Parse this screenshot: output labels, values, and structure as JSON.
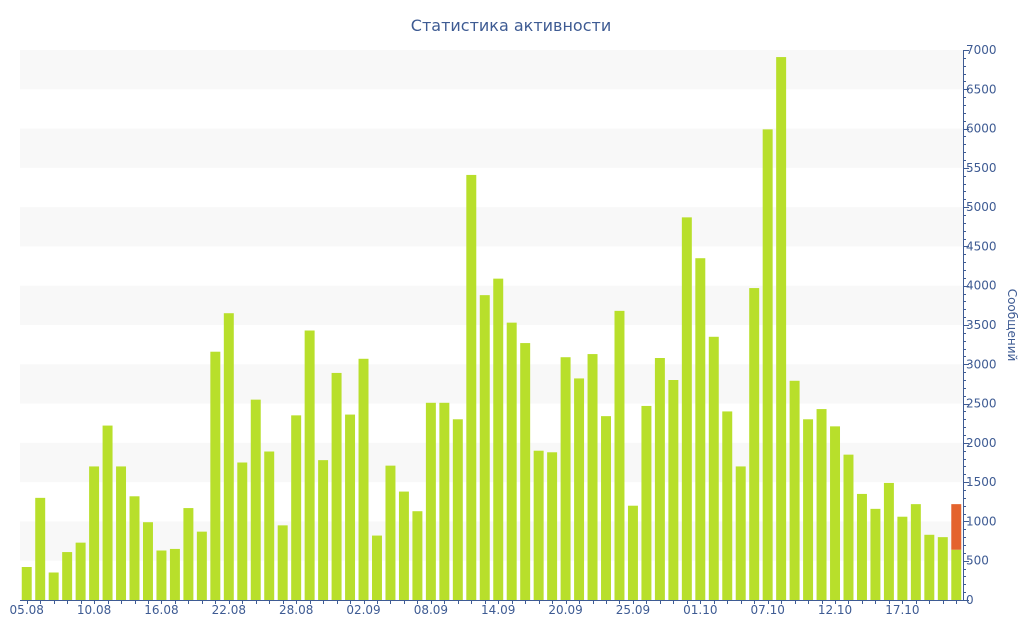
{
  "colors": {
    "bar": "#b8df2b",
    "highlight": "#e4632d",
    "band": "#f8f8f8",
    "axis": "#3e5b93",
    "text": "#3e5b93"
  },
  "chart_data": {
    "type": "bar",
    "title": "Статистика активности",
    "xlabel": "",
    "ylabel": "Сообщений",
    "ylim": [
      0,
      7000
    ],
    "yticks": [
      0,
      500,
      1000,
      1500,
      2000,
      2500,
      3000,
      3500,
      4000,
      4500,
      5000,
      5500,
      6000,
      6500,
      7000
    ],
    "grid": "alternating-bands",
    "y_axis_side": "right",
    "x_tick_labels": [
      {
        "index": 0,
        "label": "05.08"
      },
      {
        "index": 5,
        "label": "10.08"
      },
      {
        "index": 10,
        "label": "16.08"
      },
      {
        "index": 15,
        "label": "22.08"
      },
      {
        "index": 20,
        "label": "28.08"
      },
      {
        "index": 25,
        "label": "02.09"
      },
      {
        "index": 30,
        "label": "08.09"
      },
      {
        "index": 35,
        "label": "14.09"
      },
      {
        "index": 40,
        "label": "20.09"
      },
      {
        "index": 45,
        "label": "25.09"
      },
      {
        "index": 50,
        "label": "01.10"
      },
      {
        "index": 55,
        "label": "07.10"
      },
      {
        "index": 60,
        "label": "12.10"
      },
      {
        "index": 65,
        "label": "17.10"
      }
    ],
    "series": [
      {
        "values": [
          420,
          1300,
          350,
          610,
          730,
          1700,
          2220,
          1700,
          1320,
          990,
          630,
          650,
          1170,
          870,
          3160,
          3650,
          1750,
          2550,
          1890,
          950,
          2350,
          3430,
          1780,
          2890,
          2360,
          3070,
          820,
          1710,
          1380,
          1130,
          2510,
          2510,
          2300,
          5410,
          3880,
          4090,
          3530,
          3270,
          1900,
          1880,
          3090,
          2820,
          3130,
          2340,
          3680,
          1200,
          2470,
          3080,
          2800,
          4870,
          4350,
          3350,
          2400,
          1700,
          3970,
          5990,
          6910,
          2790,
          2300,
          2430,
          2210,
          1850,
          1350,
          1160,
          1490,
          1060,
          1220,
          830,
          800,
          640
        ]
      }
    ],
    "highlight": {
      "index": 69,
      "base": 640,
      "top": 1220
    }
  }
}
